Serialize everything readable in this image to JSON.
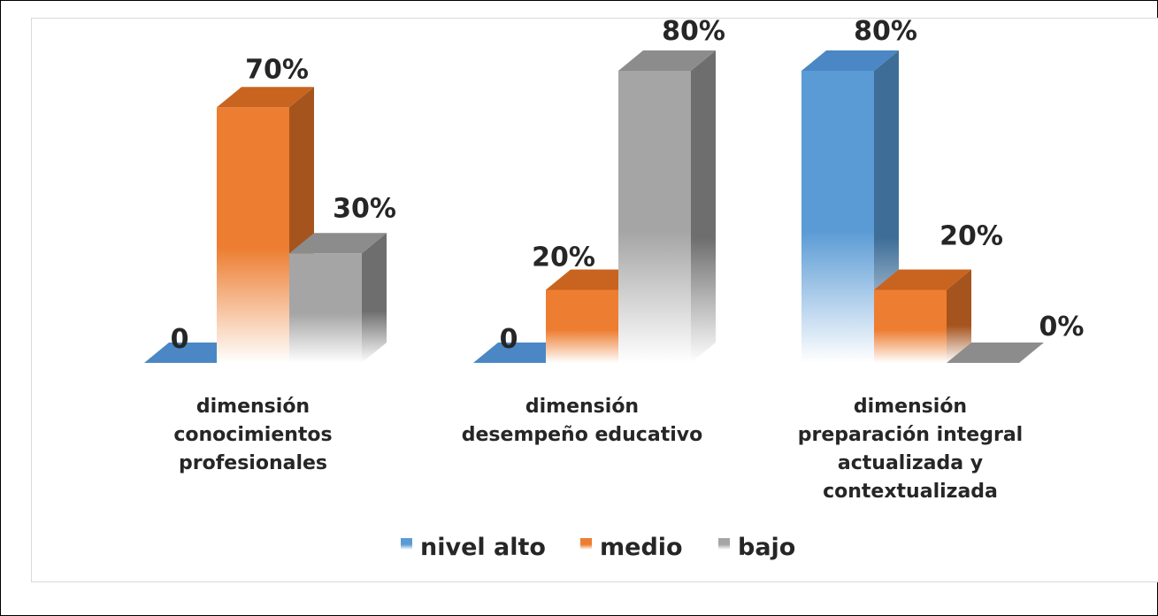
{
  "chart_data": {
    "type": "bar",
    "categories": [
      [
        "dimensión",
        "conocimientos",
        "profesionales"
      ],
      [
        "dimensión",
        "desempeño educativo"
      ],
      [
        "dimensión",
        "preparación integral",
        "actualizada y",
        "contextualizada"
      ]
    ],
    "series": [
      {
        "name": "nivel alto",
        "values": [
          0,
          0,
          80
        ],
        "labels": [
          "0",
          "0",
          "80%"
        ],
        "color": "#5b9bd5",
        "side": "#3e6e98",
        "top": "#4a87c4"
      },
      {
        "name": "medio",
        "values": [
          70,
          20,
          20
        ],
        "labels": [
          "70%",
          "20%",
          "20%"
        ],
        "color": "#ed7d31",
        "side": "#a6541d",
        "top": "#c8641f"
      },
      {
        "name": "bajo",
        "values": [
          30,
          80,
          0
        ],
        "labels": [
          "30%",
          "80%",
          "0%"
        ],
        "color": "#a5a5a5",
        "side": "#6e6e6e",
        "top": "#8c8c8c"
      }
    ],
    "ylim": [
      0,
      80
    ],
    "grid": false,
    "legend_position": "bottom",
    "three_d": true
  }
}
